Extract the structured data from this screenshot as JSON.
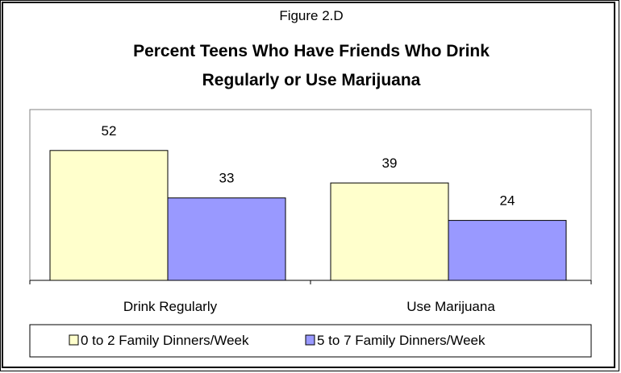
{
  "chart_data": {
    "type": "bar",
    "figure_label": "Figure 2.D",
    "title_line1": "Percent Teens Who Have Friends Who Drink",
    "title_line2": "Regularly or Use Marijuana",
    "categories": [
      "Drink Regularly",
      "Use Marijuana"
    ],
    "series": [
      {
        "name": "0 to 2 Family Dinners/Week",
        "values": [
          52,
          39
        ],
        "color": "#ffffcc"
      },
      {
        "name": "5 to 7 Family Dinners/Week",
        "values": [
          33,
          24
        ],
        "color": "#9999ff"
      }
    ],
    "ylim": [
      0,
      60
    ],
    "grid": false,
    "legend_position": "bottom"
  }
}
